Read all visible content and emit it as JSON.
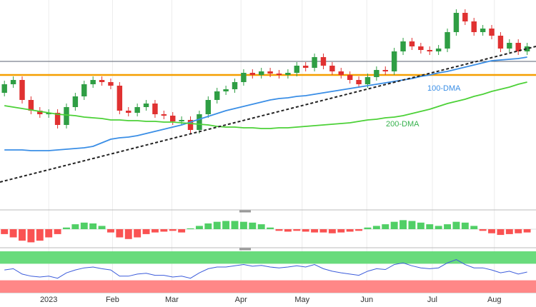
{
  "chart_data": {
    "type": "candlestick",
    "xlim": [
      -0.5,
      60
    ],
    "ylim": [
      0,
      145
    ],
    "xticks": [
      {
        "value": 5,
        "label": "2023"
      },
      {
        "value": 12.2,
        "label": "Feb"
      },
      {
        "value": 18.9,
        "label": "Mar"
      },
      {
        "value": 26.7,
        "label": "Apr"
      },
      {
        "value": 33.6,
        "label": "May"
      },
      {
        "value": 40.9,
        "label": "Jun"
      },
      {
        "value": 48.3,
        "label": "Jul"
      },
      {
        "value": 55.3,
        "label": "Aug"
      }
    ],
    "up_color": "#2f9e44",
    "down_color": "#e03131",
    "open": [
      80,
      86,
      89,
      75,
      67.5,
      65,
      66,
      57.5,
      70,
      77.5,
      86,
      89,
      87.5,
      85,
      67.5,
      66,
      70,
      72.5,
      65,
      64,
      60,
      61,
      54,
      65,
      75,
      81,
      82.5,
      87.5,
      94,
      92.5,
      95,
      93.5,
      92.5,
      94,
      99,
      97.5,
      105,
      99,
      95,
      92.5,
      89,
      86,
      91,
      96,
      95,
      109,
      116,
      112.5,
      110,
      109,
      111,
      122.5,
      136,
      130,
      122.5,
      125,
      120,
      111,
      115,
      109
    ],
    "high": [
      88.5,
      91.5,
      91.5,
      77.5,
      70,
      68.5,
      68.5,
      72.5,
      80,
      88.5,
      91.5,
      91.5,
      90,
      87.5,
      70,
      72.5,
      75,
      75,
      67.5,
      66.5,
      63.5,
      63.5,
      67.5,
      77.5,
      83.5,
      85,
      90,
      96.5,
      96.5,
      97.5,
      97.5,
      96,
      96.5,
      101.5,
      101.5,
      107.5,
      107.5,
      101.5,
      97.5,
      95,
      91.5,
      93.5,
      98.5,
      98.5,
      111.5,
      118.5,
      118.5,
      115,
      112.5,
      113.5,
      125,
      138.5,
      138.5,
      132.5,
      127.5,
      127.5,
      122.5,
      117.5,
      117.5,
      115
    ],
    "low": [
      77.5,
      83.5,
      72.5,
      65,
      62.5,
      62.5,
      55,
      55,
      67.5,
      75,
      83.5,
      85,
      82.5,
      65,
      63.5,
      63.5,
      67.5,
      62.5,
      61.5,
      57.5,
      57.5,
      51.5,
      51.5,
      62.5,
      72.5,
      78.5,
      80,
      85,
      90,
      90,
      91,
      90,
      90,
      91.5,
      95,
      95,
      96.5,
      92.5,
      90,
      86.5,
      83.5,
      83.5,
      88.5,
      92.5,
      92.5,
      106.5,
      110,
      107.5,
      106.5,
      106.5,
      108.5,
      120,
      127.5,
      120,
      120,
      117.5,
      108.5,
      108.5,
      106.5,
      106.5
    ],
    "close": [
      86,
      89,
      75,
      67.5,
      65,
      66,
      57.5,
      70,
      77.5,
      86,
      89,
      87.5,
      85,
      67.5,
      66,
      70,
      72.5,
      65,
      64,
      60,
      61,
      54,
      65,
      75,
      81,
      82.5,
      87.5,
      94,
      92.5,
      95,
      93.5,
      92.5,
      94,
      99,
      97.5,
      105,
      99,
      95,
      92.5,
      89,
      86,
      91,
      96,
      95,
      109,
      116,
      112.5,
      110,
      109,
      111,
      122.5,
      136,
      130,
      122.5,
      125,
      120,
      111,
      115,
      109,
      112.5
    ],
    "series": [
      {
        "name": "100-DMA",
        "color": "#3a8ee6",
        "values": [
          40,
          40,
          40,
          39.5,
          39.5,
          39.5,
          40,
          40.5,
          41,
          41.5,
          42.5,
          45,
          47.5,
          48.5,
          49,
          50,
          51.5,
          53,
          54.5,
          56,
          57.5,
          59.5,
          61.5,
          63.5,
          65.5,
          67.5,
          69,
          70.5,
          72,
          73.5,
          75,
          76,
          76.5,
          77.5,
          78,
          79,
          80,
          81,
          82,
          83,
          84,
          85,
          86,
          87,
          88,
          89,
          90,
          91.5,
          92.5,
          94,
          95,
          96.5,
          98,
          99.5,
          101,
          102.5,
          103,
          103.5,
          104,
          105
        ]
      },
      {
        "name": "200-DMA",
        "color": "#4cd137",
        "values": [
          71,
          70,
          69,
          68,
          67,
          66,
          65,
          64.5,
          64,
          63,
          62.5,
          62,
          61,
          61,
          60.5,
          60.5,
          60,
          60,
          59.5,
          59.5,
          59,
          58.5,
          58,
          57.5,
          56.5,
          56,
          56,
          55.5,
          55.5,
          55,
          55,
          55.5,
          55.5,
          56,
          56.5,
          57,
          57.5,
          58,
          58.5,
          59,
          60,
          61,
          61.5,
          62.5,
          63,
          64,
          65.5,
          67,
          68.5,
          70.5,
          72.5,
          74,
          75.5,
          77.5,
          79,
          81,
          82.5,
          84,
          86,
          87.5
        ]
      }
    ],
    "trendline": {
      "start": 17.5,
      "end": 112.5,
      "color": "#222222"
    },
    "levels": [
      {
        "value": 102,
        "color": "#5a6270"
      },
      {
        "value": 92.5,
        "color": "#f59f00"
      }
    ],
    "macd_histogram": {
      "ylim": [
        -1,
        1
      ],
      "values": [
        -0.3,
        -0.5,
        -0.7,
        -0.8,
        -0.7,
        -0.5,
        -0.3,
        0.1,
        0.3,
        0.4,
        0.35,
        0.2,
        -0.2,
        -0.5,
        -0.6,
        -0.5,
        -0.3,
        -0.2,
        -0.15,
        -0.1,
        -0.2,
        0.05,
        0.2,
        0.35,
        0.45,
        0.5,
        0.5,
        0.45,
        0.4,
        0.3,
        0.1,
        -0.1,
        -0.15,
        -0.1,
        -0.15,
        -0.2,
        -0.2,
        -0.25,
        -0.2,
        -0.15,
        -0.1,
        0.1,
        0.2,
        0.3,
        0.45,
        0.55,
        0.5,
        0.4,
        0.3,
        0.2,
        0.3,
        0.45,
        0.4,
        0.2,
        -0.1,
        -0.25,
        -0.35,
        -0.3,
        -0.25,
        -0.2
      ]
    },
    "rsi": {
      "ylim": [
        0,
        100
      ],
      "levels": [
        30,
        70
      ],
      "color": "#3b5bdb",
      "values": [
        55,
        58,
        45,
        40,
        38,
        40,
        35,
        48,
        55,
        60,
        62,
        58,
        55,
        40,
        40,
        45,
        47,
        42,
        42,
        38,
        40,
        35,
        48,
        58,
        62,
        62,
        65,
        68,
        64,
        66,
        62,
        60,
        62,
        65,
        62,
        68,
        58,
        52,
        48,
        45,
        42,
        52,
        58,
        56,
        68,
        72,
        65,
        60,
        58,
        60,
        72,
        80,
        68,
        60,
        60,
        55,
        48,
        52,
        45,
        50
      ]
    }
  }
}
